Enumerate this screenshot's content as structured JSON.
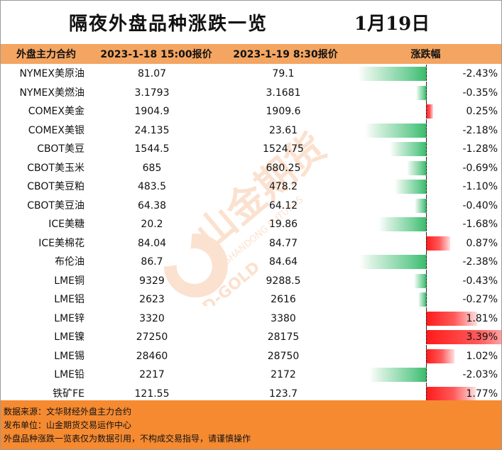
{
  "title": "隔夜外盘品种涨跌一览",
  "date": "1月19日",
  "headers": [
    "外盘主力合约",
    "2023-1-18 15:00报价",
    "2023-1-19 8:30报价",
    "涨跌幅"
  ],
  "rows": [
    {
      "name": "NYMEX美原油",
      "prev": "81.07",
      "curr": "79.1",
      "change": "-2.43%",
      "value": -2.43
    },
    {
      "name": "NYMEX美燃油",
      "prev": "3.1793",
      "curr": "3.1681",
      "change": "-0.35%",
      "value": -0.35
    },
    {
      "name": "COMEX美金",
      "prev": "1904.9",
      "curr": "1909.6",
      "change": "0.25%",
      "value": 0.25
    },
    {
      "name": "COMEX美银",
      "prev": "24.135",
      "curr": "23.61",
      "change": "-2.18%",
      "value": -2.18
    },
    {
      "name": "CBOT美豆",
      "prev": "1544.5",
      "curr": "1524.75",
      "change": "-1.28%",
      "value": -1.28
    },
    {
      "name": "CBOT美玉米",
      "prev": "685",
      "curr": "680.25",
      "change": "-0.69%",
      "value": -0.69
    },
    {
      "name": "CBOT美豆粕",
      "prev": "483.5",
      "curr": "478.2",
      "change": "-1.10%",
      "value": -1.1
    },
    {
      "name": "CBOT美豆油",
      "prev": "64.38",
      "curr": "64.12",
      "change": "-0.40%",
      "value": -0.4
    },
    {
      "name": "ICE美糖",
      "prev": "20.2",
      "curr": "19.86",
      "change": "-1.68%",
      "value": -1.68
    },
    {
      "name": "ICE美棉花",
      "prev": "84.04",
      "curr": "84.77",
      "change": "0.87%",
      "value": 0.87
    },
    {
      "name": "布伦油",
      "prev": "86.7",
      "curr": "84.64",
      "change": "-2.38%",
      "value": -2.38
    },
    {
      "name": "LME铜",
      "prev": "9329",
      "curr": "9288.5",
      "change": "-0.43%",
      "value": -0.43
    },
    {
      "name": "LME铝",
      "prev": "2623",
      "curr": "2616",
      "change": "-0.27%",
      "value": -0.27
    },
    {
      "name": "LME锌",
      "prev": "3320",
      "curr": "3380",
      "change": "1.81%",
      "value": 1.81
    },
    {
      "name": "LME镍",
      "prev": "27250",
      "curr": "28175",
      "change": "3.39%",
      "value": 3.39
    },
    {
      "name": "LME锡",
      "prev": "28460",
      "curr": "28750",
      "change": "1.02%",
      "value": 1.02
    },
    {
      "name": "LME铅",
      "prev": "2217",
      "curr": "2172",
      "change": "-2.03%",
      "value": -2.03
    },
    {
      "name": "铁矿FE",
      "prev": "121.55",
      "curr": "123.7",
      "change": "1.77%",
      "value": 1.77
    }
  ],
  "footer": {
    "source": "数据来源：文华财经外盘主力合约",
    "publisher": "发布单位：山金期货交易运作中心",
    "disclaimer": "外盘品种涨跌一览表仅为数据引用，不构成交易指导，请谨慎操作"
  },
  "watermark": {
    "brand": "山金期货",
    "en": "SHANDONG FUTURES",
    "logo_text": "SD-GOLD",
    "color": "#f07a2a"
  }
}
